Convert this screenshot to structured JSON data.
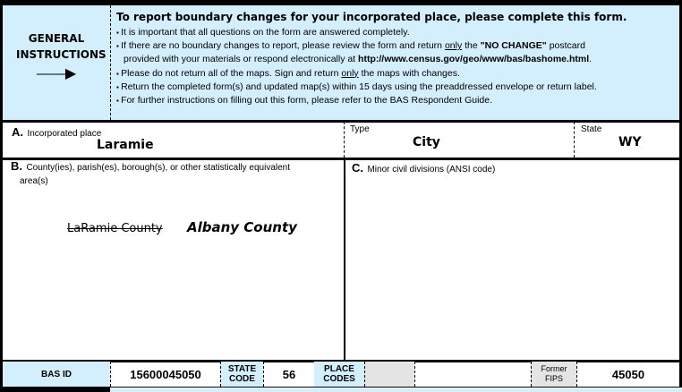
{
  "instructions": {
    "heading_left": "GENERAL INSTRUCTIONS",
    "arrow_icon": "arrow-right-icon",
    "title": "To report boundary changes for your incorporated place, please complete this form.",
    "items": [
      {
        "text": "It is important that all questions on the form are answered completely."
      },
      {
        "pre": "If there are no boundary changes to report, please review the form and return ",
        "u": "only",
        "mid": " the ",
        "b": "\"NO CHANGE\"",
        "post": " postcard"
      },
      {
        "pre": "provided with your materials or respond electronically at ",
        "b": "http://www.census.gov/geo/www/bas/bashome.html",
        "post": "."
      },
      {
        "pre": "Please do not return all of the maps. Sign and return ",
        "u": "only",
        "post": " the maps with changes."
      },
      {
        "text": "Return the completed form(s) and updated map(s) within 15 days using the preaddressed envelope or return label."
      },
      {
        "text": "For further instructions on filling out this form, please refer to the BAS Respondent Guide."
      }
    ]
  },
  "section_a": {
    "letter": "A.",
    "label": "Incorporated place",
    "value": "Laramie",
    "type_label": "Type",
    "type_value": "City",
    "state_label": "State",
    "state_value": "WY"
  },
  "section_b": {
    "letter": "B.",
    "label": "County(ies), parish(es), borough(s), or other statistically equivalent",
    "label2": "area(s)",
    "struck": "LaRamie County",
    "handwritten": "Albany County"
  },
  "section_c": {
    "letter": "C.",
    "label": "Minor civil divisions (ANSI code)"
  },
  "footer": {
    "bas_id_label": "BAS ID",
    "bas_id": "15600045050",
    "state_code_label1": "STATE",
    "state_code_label2": "CODE",
    "state_code": "56",
    "place_codes_label1": "PLACE",
    "place_codes_label2": "CODES",
    "former_fips_label1": "Former",
    "former_fips_label2": "FIPS",
    "former_fips": "45050"
  }
}
